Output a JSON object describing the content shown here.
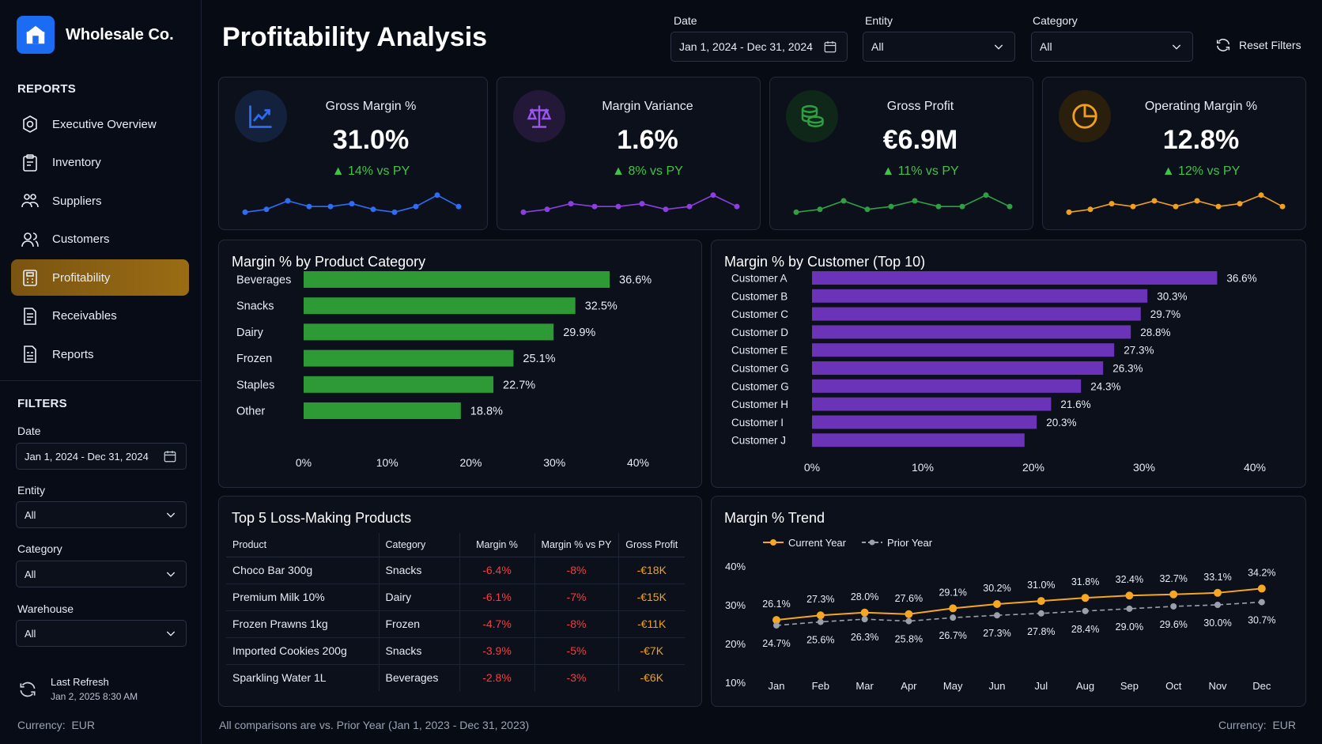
{
  "sidebar": {
    "brand": "Wholesale Co.",
    "reports_label": "REPORTS",
    "nav": [
      {
        "label": "Executive Overview",
        "icon": "target-icon"
      },
      {
        "label": "Inventory",
        "icon": "clipboard-icon"
      },
      {
        "label": "Suppliers",
        "icon": "suppliers-icon"
      },
      {
        "label": "Customers",
        "icon": "users-icon"
      },
      {
        "label": "Profitability",
        "icon": "calculator-icon",
        "active": true
      },
      {
        "label": "Receivables",
        "icon": "document-icon"
      },
      {
        "label": "Reports",
        "icon": "report-icon"
      }
    ],
    "filters_label": "FILTERS",
    "filters": {
      "date_label": "Date",
      "date_value": "Jan 1, 2024 - Dec 31, 2024",
      "entity_label": "Entity",
      "entity_value": "All",
      "category_label": "Category",
      "category_value": "All",
      "warehouse_label": "Warehouse",
      "warehouse_value": "All"
    },
    "last_refresh_label": "Last Refresh",
    "last_refresh_value": "Jan 2, 2025 8:30 AM",
    "currency_label": "Currency:",
    "currency_value": "EUR"
  },
  "header": {
    "title": "Profitability Analysis",
    "date_label": "Date",
    "date_value": "Jan 1, 2024 - Dec 31, 2024",
    "entity_label": "Entity",
    "entity_value": "All",
    "category_label": "Category",
    "category_value": "All",
    "reset_label": "Reset Filters"
  },
  "kpis": [
    {
      "title": "Gross Margin %",
      "value": "31.0%",
      "delta": "14% vs PY",
      "color": "#2f6cf6",
      "icon": "trend-chart-icon",
      "spark": [
        2,
        3,
        6,
        4,
        4,
        5,
        3,
        2,
        4,
        8,
        4
      ]
    },
    {
      "title": "Margin Variance",
      "value": "1.6%",
      "delta": "8% vs PY",
      "color": "#8b3fe0",
      "icon": "scale-icon",
      "spark": [
        2,
        3,
        5,
        4,
        4,
        5,
        3,
        4,
        8,
        4
      ]
    },
    {
      "title": "Gross Profit",
      "value": "€6.9M",
      "delta": "11% vs PY",
      "color": "#2ea043",
      "icon": "coins-icon",
      "spark": [
        2,
        3,
        6,
        3,
        4,
        6,
        4,
        4,
        8,
        4
      ]
    },
    {
      "title": "Operating Margin %",
      "value": "12.8%",
      "delta": "12% vs PY",
      "color": "#f0a020",
      "icon": "pie-icon",
      "spark": [
        2,
        3,
        5,
        4,
        6,
        4,
        6,
        4,
        5,
        8,
        4
      ]
    }
  ],
  "chart_data": [
    {
      "type": "bar",
      "title": "Margin % by Product Category",
      "categories": [
        "Beverages",
        "Snacks",
        "Dairy",
        "Frozen",
        "Staples",
        "Other"
      ],
      "values": [
        36.6,
        32.5,
        29.9,
        25.1,
        22.7,
        18.8
      ],
      "labels": [
        "36.6%",
        "32.5%",
        "29.9%",
        "25.1%",
        "22.7%",
        "18.8%"
      ],
      "xlim": [
        0,
        40
      ],
      "ticks": [
        "0%",
        "10%",
        "20%",
        "30%",
        "40%"
      ],
      "color": "#2e9a35"
    },
    {
      "type": "bar",
      "title": "Margin % by Customer (Top 10)",
      "categories": [
        "Customer A",
        "Customer B",
        "Customer C",
        "Customer D",
        "Customer E",
        "Customer G",
        "Customer G",
        "Customer H",
        "Customer I",
        "Customer J"
      ],
      "values": [
        36.6,
        30.3,
        29.7,
        28.8,
        27.3,
        26.3,
        24.3,
        21.6,
        20.3,
        19.2
      ],
      "labels": [
        "36.6%",
        "30.3%",
        "29.7%",
        "28.8%",
        "27.3%",
        "26.3%",
        "24.3%",
        "21.6%",
        "20.3%",
        ""
      ],
      "xlim": [
        0,
        40
      ],
      "ticks": [
        "0%",
        "10%",
        "20%",
        "30%",
        "40%"
      ],
      "color": "#6b33b8"
    },
    {
      "type": "line",
      "title": "Margin % Trend",
      "x": [
        "Jan",
        "Feb",
        "Mar",
        "Apr",
        "May",
        "Jun",
        "Jul",
        "Aug",
        "Sep",
        "Oct",
        "Nov",
        "Dec"
      ],
      "series": [
        {
          "name": "Current Year",
          "values": [
            26.1,
            27.3,
            28.0,
            27.6,
            29.1,
            30.2,
            31.0,
            31.8,
            32.4,
            32.7,
            33.1,
            34.2
          ],
          "labels": [
            "26.1%",
            "27.3%",
            "28.0%",
            "27.6%",
            "29.1%",
            "30.2%",
            "31.0%",
            "31.8%",
            "32.4%",
            "32.7%",
            "33.1%",
            "34.2%"
          ],
          "color": "#f5a623"
        },
        {
          "name": "Prior Year",
          "values": [
            24.7,
            25.6,
            26.3,
            25.8,
            26.7,
            27.3,
            27.8,
            28.4,
            29.0,
            29.6,
            30.0,
            30.7
          ],
          "labels": [
            "24.7%",
            "25.6%",
            "26.3%",
            "25.8%",
            "26.7%",
            "27.3%",
            "27.8%",
            "28.4%",
            "29.0%",
            "29.6%",
            "30.0%",
            "30.7%"
          ],
          "color": "#9aa0ab"
        }
      ],
      "ylim": [
        10,
        40
      ],
      "yticks": [
        "10%",
        "20%",
        "30%",
        "40%"
      ]
    }
  ],
  "loss_table": {
    "title": "Top 5 Loss-Making Products",
    "columns": [
      "Product",
      "Category",
      "Margin %",
      "Margin % vs PY",
      "Gross Profit"
    ],
    "rows": [
      [
        "Choco Bar 300g",
        "Snacks",
        "-6.4%",
        "-8%",
        "-€18K"
      ],
      [
        "Premium Milk 10%",
        "Dairy",
        "-6.1%",
        "-7%",
        "-€15K"
      ],
      [
        "Frozen Prawns 1kg",
        "Frozen",
        "-4.7%",
        "-8%",
        "-€11K"
      ],
      [
        "Imported Cookies 200g",
        "Snacks",
        "-3.9%",
        "-5%",
        "-€7K"
      ],
      [
        "Sparkling Water 1L",
        "Beverages",
        "-2.8%",
        "-3%",
        "-€6K"
      ]
    ]
  },
  "footer": {
    "note": "All comparisons are vs. Prior Year (Jan 1, 2023 - Dec 31, 2023)",
    "currency_label": "Currency:",
    "currency_value": "EUR"
  }
}
